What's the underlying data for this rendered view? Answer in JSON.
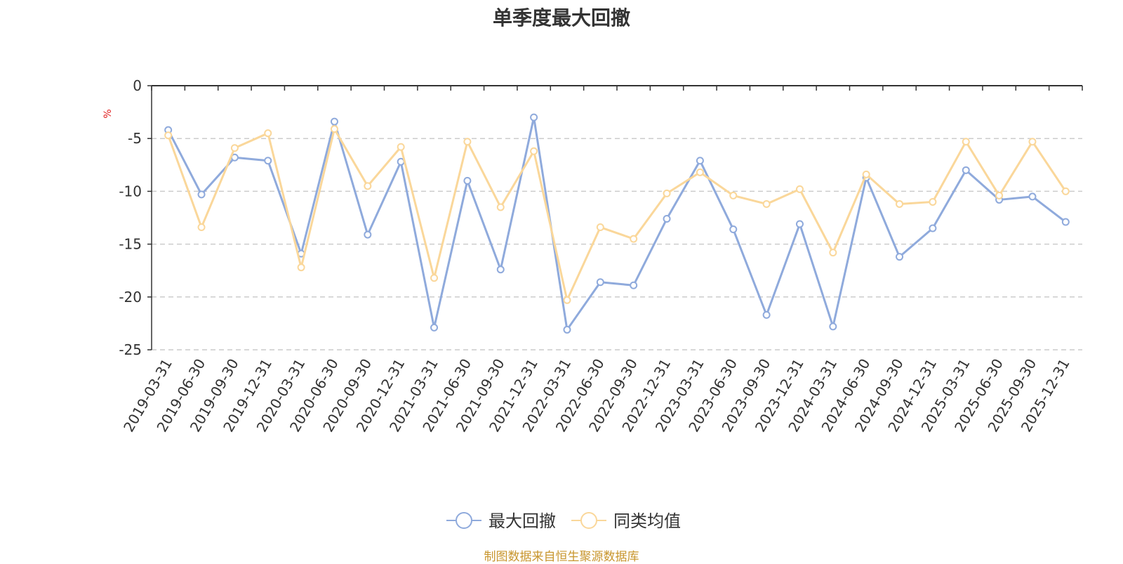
{
  "chart_data": {
    "type": "line",
    "title": "单季度最大回撤",
    "ylabel": "%",
    "ylim": [
      -25,
      0
    ],
    "yticks": [
      0,
      -5,
      -10,
      -15,
      -20,
      -25
    ],
    "grid": true,
    "legend_position": "bottom",
    "categories": [
      "2019-03-31",
      "2019-06-30",
      "2019-09-30",
      "2019-12-31",
      "2020-03-31",
      "2020-06-30",
      "2020-09-30",
      "2020-12-31",
      "2021-03-31",
      "2021-06-30",
      "2021-09-30",
      "2021-12-31",
      "2022-03-31",
      "2022-06-30",
      "2022-09-30",
      "2022-12-31",
      "2023-03-31",
      "2023-06-30",
      "2023-09-30",
      "2023-12-31",
      "2024-03-31",
      "2024-06-30",
      "2024-09-30",
      "2024-12-31",
      "2025-03-31",
      "2025-06-30",
      "2025-09-30",
      "2025-12-31"
    ],
    "series": [
      {
        "name": "最大回撤",
        "color": "#8faadc",
        "values": [
          -4.2,
          -10.3,
          -6.8,
          -7.1,
          -15.9,
          -3.4,
          -14.1,
          -7.2,
          -22.9,
          -9.0,
          -17.4,
          -3.0,
          -23.1,
          -18.6,
          -18.9,
          -12.6,
          -7.1,
          -13.6,
          -21.7,
          -13.1,
          -22.8,
          -8.7,
          -16.2,
          -13.5,
          -8.0,
          -10.8,
          -10.5,
          -12.9
        ]
      },
      {
        "name": "同类均值",
        "color": "#fad79a",
        "values": [
          -4.7,
          -13.4,
          -5.9,
          -4.5,
          -17.2,
          -4.1,
          -9.5,
          -5.8,
          -18.2,
          -5.3,
          -11.5,
          -6.2,
          -20.3,
          -13.4,
          -14.5,
          -10.2,
          -8.2,
          -10.4,
          -11.2,
          -9.8,
          -15.8,
          -8.4,
          -11.2,
          -11.0,
          -5.3,
          -10.4,
          -5.3,
          -10.0
        ]
      }
    ]
  },
  "footer": {
    "source": "制图数据来自恒生聚源数据库"
  }
}
